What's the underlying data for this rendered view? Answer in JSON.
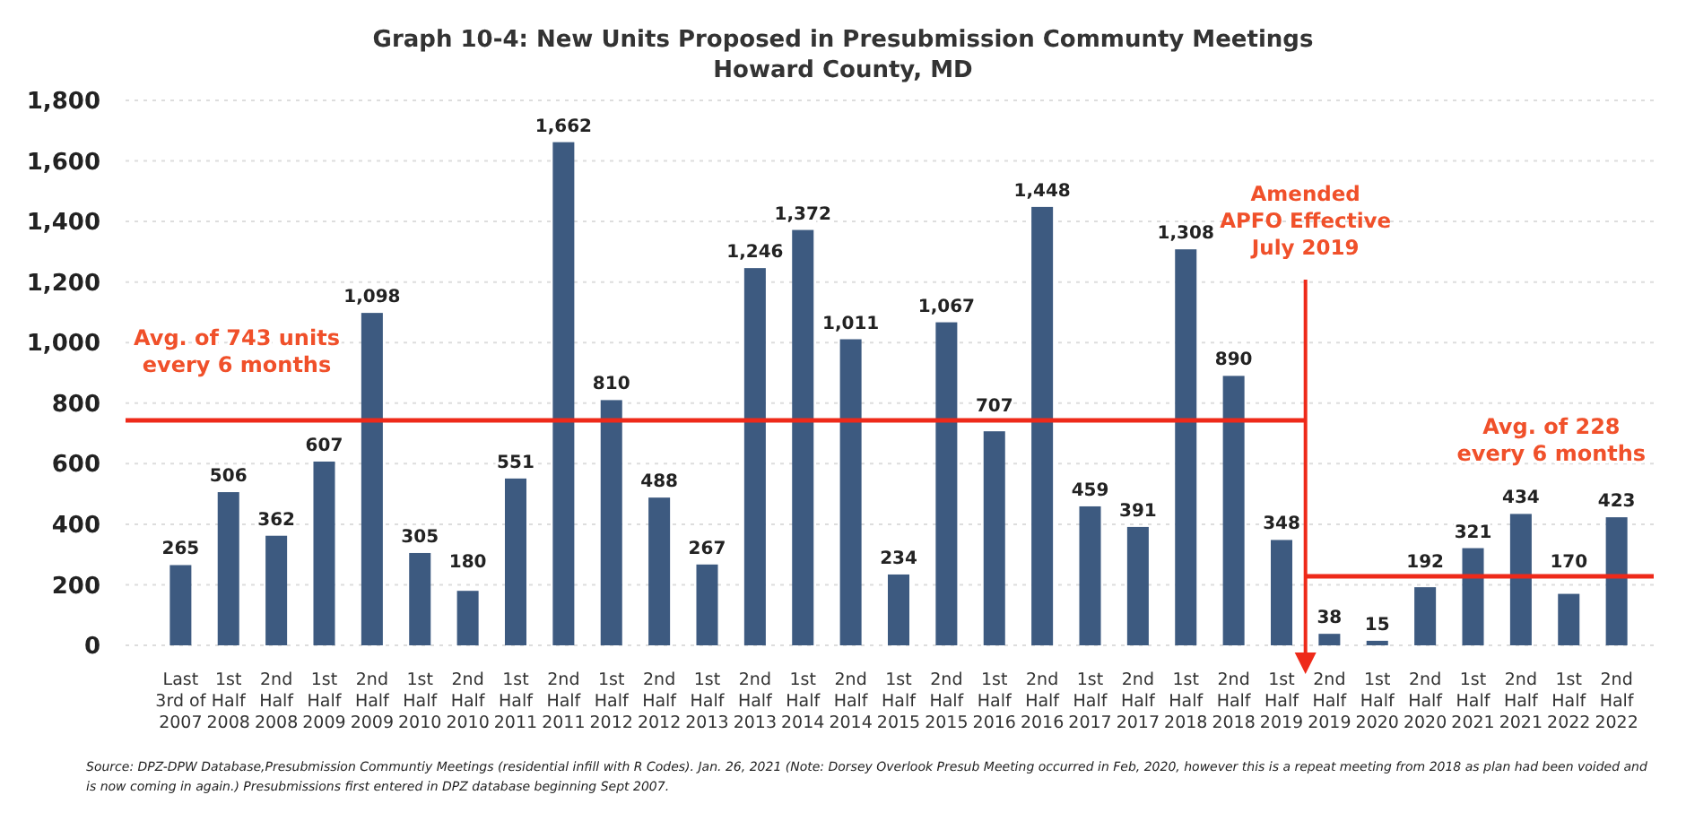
{
  "chart_data": {
    "type": "bar",
    "title": "Graph 10-4: New Units Proposed in Presubmission Communty Meetings\nHoward County, MD",
    "categories": [
      "Last\n3rd of\n2007",
      "1st\nHalf\n2008",
      "2nd\nHalf\n2008",
      "1st\nHalf\n2009",
      "2nd\nHalf\n2009",
      "1st\nHalf\n2010",
      "2nd\nHalf\n2010",
      "1st\nHalf\n2011",
      "2nd\nHalf\n2011",
      "1st\nHalf\n2012",
      "2nd\nHalf\n2012",
      "1st\nHalf\n2013",
      "2nd\nHalf\n2013",
      "1st\nHalf\n2014",
      "2nd\nHalf\n2014",
      "1st\nHalf\n2015",
      "2nd\nHalf\n2015",
      "1st\nHalf\n2016",
      "2nd\nHalf\n2016",
      "1st\nHalf\n2017",
      "2nd\nHalf\n2017",
      "1st\nHalf\n2018",
      "2nd\nHalf\n2018",
      "1st\nHalf\n2019",
      "2nd\nHalf\n2019",
      "1st\nHalf\n2020",
      "2nd\nHalf\n2020",
      "1st\nHalf\n2021",
      "2nd\nHalf\n2021",
      "1st\nHalf\n2022",
      "2nd\nHalf\n2022"
    ],
    "values": [
      265,
      506,
      362,
      607,
      1098,
      305,
      180,
      551,
      1662,
      810,
      488,
      267,
      1246,
      1372,
      1011,
      234,
      1067,
      707,
      1448,
      459,
      391,
      1308,
      890,
      348,
      38,
      15,
      192,
      321,
      434,
      170,
      423
    ],
    "value_labels": [
      "265",
      "506",
      "362",
      "607",
      "1,098",
      "305",
      "180",
      "551",
      "1,662",
      "810",
      "488",
      "267",
      "1,246",
      "1,372",
      "1,011",
      "234",
      "1,067",
      "707",
      "1,448",
      "459",
      "391",
      "1,308",
      "890",
      "348",
      "38",
      "15",
      "192",
      "321",
      "434",
      "170",
      "423"
    ],
    "color": "#3d5a80",
    "ylim": [
      0,
      1800
    ],
    "yticks": [
      0,
      200,
      400,
      600,
      800,
      {
        "value": 1000,
        "label": "1,000"
      },
      {
        "value": 1200,
        "label": "1,200"
      },
      {
        "value": 1400,
        "label": "1,400"
      },
      {
        "value": 1600,
        "label": "1,600"
      },
      {
        "value": 1800,
        "label": "1,800"
      }
    ],
    "grid": "y",
    "ref_lines": [
      {
        "axis": "y",
        "value": 743,
        "label": "Avg. of 743 units\nevery 6 months",
        "color": "#ee2a1a"
      },
      {
        "axis": "y",
        "value": 228,
        "label": "Avg. of 228\nevery 6 months",
        "color": "#ee2a1a"
      },
      {
        "axis": "x",
        "value": "2nd\nHalf\n2019",
        "label": "Amended\nAPFO Effective\nJuly 2019",
        "color": "#ee2a1a"
      }
    ],
    "annotations": [
      "Source: DPZ-DPW Database,Presubmission Communtiy Meetings (residential infill with R Codes). Jan. 26, 2021 (Note: Dorsey Overlook Presub Meeting occurred in Feb, 2020, however this is a repeat meeting from 2018 as plan had been voided and\nis now coming in again.) Presubmissions first entered in DPZ database beginning Sept 2007."
    ]
  }
}
